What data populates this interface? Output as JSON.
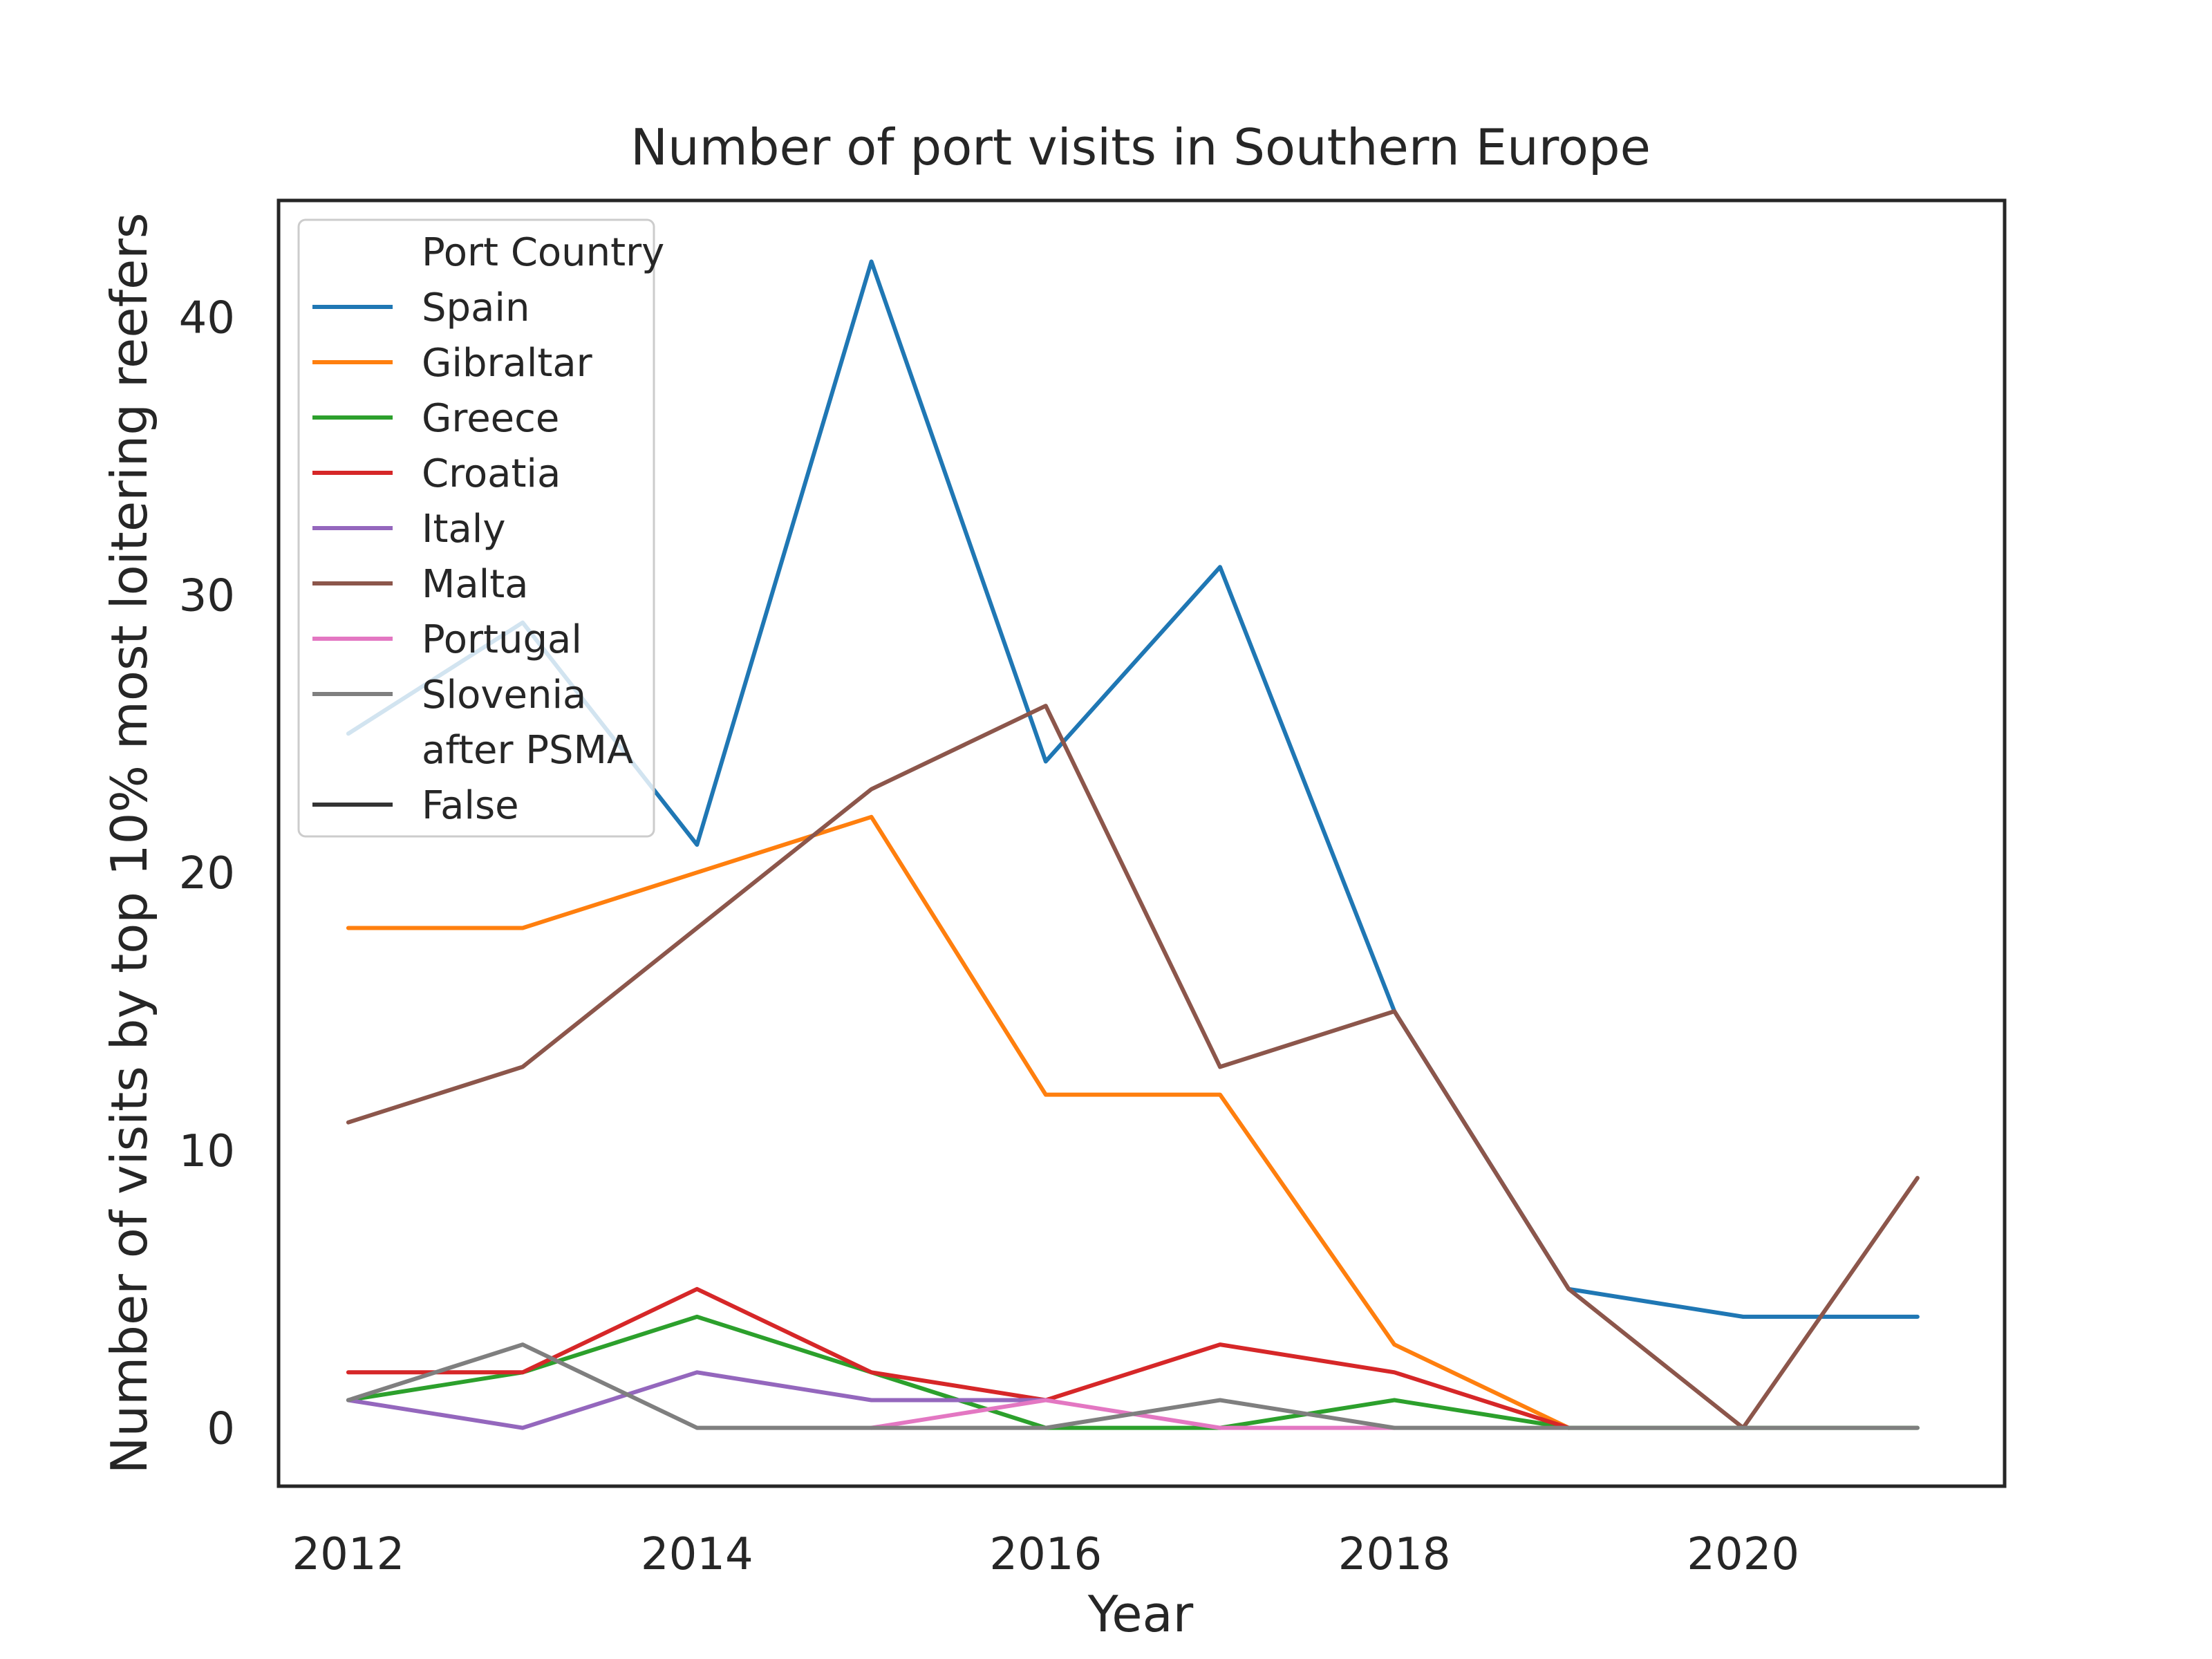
{
  "chart_data": {
    "type": "line",
    "title": "Number of port visits in Southern Europe",
    "xlabel": "Year",
    "ylabel": "Number of visits by top 10% most loitering reefers",
    "xlim": [
      2011.6,
      2021.5
    ],
    "ylim": [
      -2.1,
      44.2
    ],
    "xticks": [
      2012,
      2014,
      2016,
      2018,
      2020
    ],
    "yticks": [
      0,
      10,
      20,
      30,
      40
    ],
    "grid": false,
    "legend": {
      "placement": "top-left",
      "title": "Port Country",
      "hue_title": "Port Country",
      "style_title": "after PSMA",
      "style_entry": {
        "label": "False",
        "color": "#333333"
      }
    },
    "series": [
      {
        "name": "Spain",
        "color": "#1f77b4",
        "x": [
          2012,
          2013,
          2014,
          2015,
          2016,
          2017,
          2018,
          2019,
          2020,
          2021
        ],
        "values": [
          25,
          29,
          21,
          42,
          24,
          31,
          15,
          5,
          4,
          4
        ]
      },
      {
        "name": "Gibraltar",
        "color": "#ff7f0e",
        "x": [
          2012,
          2013,
          2014,
          2015,
          2016,
          2017,
          2018,
          2019
        ],
        "values": [
          18,
          18,
          20,
          22,
          12,
          12,
          3,
          0
        ]
      },
      {
        "name": "Greece",
        "color": "#2ca02c",
        "x": [
          2012,
          2013,
          2014,
          2015,
          2016,
          2017,
          2018,
          2019,
          2020,
          2021
        ],
        "values": [
          1,
          2,
          4,
          2,
          0,
          0,
          1,
          0,
          0,
          0
        ]
      },
      {
        "name": "Croatia",
        "color": "#d62728",
        "x": [
          2012,
          2013,
          2014,
          2015,
          2016,
          2017,
          2018,
          2019
        ],
        "values": [
          2,
          2,
          5,
          2,
          1,
          3,
          2,
          0
        ]
      },
      {
        "name": "Italy",
        "color": "#9467bd",
        "x": [
          2012,
          2013,
          2014,
          2015,
          2016
        ],
        "values": [
          1,
          0,
          2,
          1,
          1
        ]
      },
      {
        "name": "Malta",
        "color": "#8c564b",
        "x": [
          2012,
          2013,
          2014,
          2015,
          2016,
          2017,
          2018,
          2019,
          2020,
          2021
        ],
        "values": [
          11,
          13,
          18,
          23,
          26,
          13,
          15,
          5,
          0,
          9
        ]
      },
      {
        "name": "Portugal",
        "color": "#e377c2",
        "x": [
          2015,
          2016,
          2017,
          2018
        ],
        "values": [
          0,
          1,
          0,
          0
        ]
      },
      {
        "name": "Slovenia",
        "color": "#7f7f7f",
        "x": [
          2012,
          2013,
          2014,
          2015,
          2016,
          2017,
          2018,
          2019,
          2020,
          2021
        ],
        "values": [
          1,
          3,
          0,
          0,
          0,
          1,
          0,
          0,
          0,
          0
        ]
      }
    ]
  }
}
